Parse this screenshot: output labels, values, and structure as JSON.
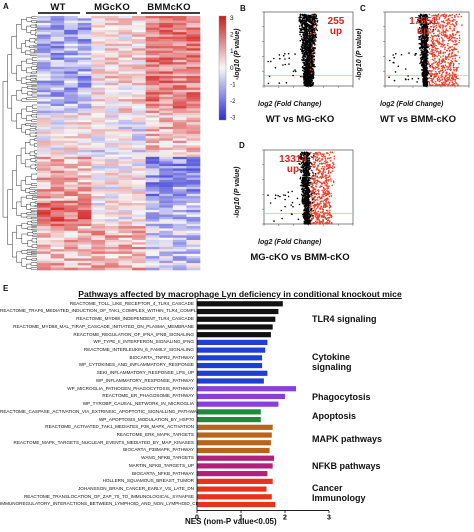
{
  "panels": {
    "A": "A",
    "B": "B",
    "C": "C",
    "D": "D",
    "E": "E"
  },
  "heatmap": {
    "groups": [
      "WT",
      "MGcKO",
      "BMMcKO"
    ],
    "scale_ticks": [
      "3",
      "2",
      "1",
      "0",
      "-1",
      "-2",
      "-3"
    ],
    "colors": {
      "high": "#d7191c",
      "mid": "#f7f7f7",
      "low": "#2c2cd6"
    }
  },
  "volcano": {
    "ylabel": "-log10 (P value)",
    "xlabel": "log2 (Fold Change)",
    "plots": [
      {
        "panel": "B",
        "up_count": "255",
        "up_word": "up",
        "title": "WT vs MG-cKO"
      },
      {
        "panel": "C",
        "up_count": "17651",
        "up_word": "up",
        "title": "WT vs BMM-cKO"
      },
      {
        "panel": "D",
        "up_count": "13314",
        "up_word": "up",
        "title": "MG-cKO vs BMM-cKO"
      }
    ]
  },
  "chart_data": {
    "type": "bar",
    "title": "Pathways affected by macrophage Lyn deficiency in conditional knockout mice",
    "xlabel": "NES (nom-P value<0.05)",
    "xticks": [
      "0",
      "1",
      "2",
      "3"
    ],
    "xlim": [
      0,
      3
    ],
    "categories": [
      "REACTOME_TOLL_LIKE_RECEPTOR_4_TLR4_CASCADE",
      "REACTOME_TRAF6_MEDIATED_INDUCTION_OF_TAK1_COMPLEX_WITHIN_TLR4_COMPLEX",
      "REACTOME_MYD88_INDEPENDENT_TLR4_CASCADE",
      "REACTOME_MYD88_MAL_TIRAP_CASCADE_INITIATED_ON_PLASMA_MEMBRANE",
      "REACTOME_REGULATION_OF_IFNA_IFNB_SIGNALING",
      "WP_TYPE_II_INTERFERON_SIGNALING_IFNG",
      "REACTOME_INTERLEUKIN_6_FAMILY_SIGNALING",
      "BIOCARTA_TNFR2_PATHWAY",
      "WP_CYTOKINES_AND_INFLAMMATORY_RESPONSE",
      "SEKI_INFLAMMATORY_RESPONSE_LPS_UP",
      "WP_INFLAMMATORY_RESPONSE_PATHWAY",
      "WP_MICROGLIA_PATHOGEN_PHAGOCYTOSIS_PATHWAY",
      "REACTOME_ER_PHAGOSOME_PATHWAY",
      "WP_TYROBP_CAUSAL_NETWORK_IN_MICROGLIA",
      "REACTOME_CASPASE_ACTIVATION_VIA_EXTRINSIC_APOPTOTIC_SIGNALLING_PATHWAY",
      "WP_APOPTOSIS_MODULATION_BY_HSP70",
      "REACTOME_ACTIVATED_TAK1_MEDIATES_P38_MAPK_ACTIVATION",
      "REACTOME_ERK_MAPK_TARGETS",
      "REACTOME_MAPK_TARGETS_NUCLEAR_EVENTS_MEDIATED_BY_MAP_KINASES",
      "BIOCARTA_P38MAPK_PATHWAY",
      "WANG_NFKB_TARGETS",
      "MARTIN_NFKB_TARGETS_UP",
      "BIOCARTA_NFKB_PATHWAY",
      "HOLLERN_SQUAMOUS_BREAST_TUMOR",
      "JOHANSSON_BRAIN_CANCER_EARLY_VS_LATE_DN",
      "REACTOME_TRANSLOCATION_OF_ZAP_70_TO_IMMUNOLOGICAL_SYNAPSE",
      "IMMUNOREGULATORY_INTERACTIONS_BETWEEN_LYMPHOID_AND_NON_LYMPHOID_CELLS"
    ],
    "values": [
      1.95,
      1.85,
      1.78,
      1.72,
      1.68,
      1.6,
      1.55,
      1.48,
      1.48,
      1.6,
      1.52,
      2.25,
      2.0,
      1.85,
      1.45,
      1.45,
      1.72,
      1.7,
      1.68,
      1.65,
      1.75,
      1.72,
      1.6,
      1.72,
      1.58,
      1.7,
      1.78
    ],
    "groups": [
      {
        "name": "TLR4 signaling",
        "start": 0,
        "count": 5,
        "color": "#111111"
      },
      {
        "name": "Cytokine signaling",
        "start": 5,
        "count": 6,
        "color": "#1f3ed6"
      },
      {
        "name": "Phagocytosis",
        "start": 11,
        "count": 3,
        "color": "#8a3fd8"
      },
      {
        "name": "Apoptosis",
        "start": 14,
        "count": 2,
        "color": "#1f8a3a"
      },
      {
        "name": "MAPK pathways",
        "start": 16,
        "count": 4,
        "color": "#b8641a"
      },
      {
        "name": "NFKB pathways",
        "start": 20,
        "count": 3,
        "color": "#b51f7a"
      },
      {
        "name": "Cancer Immunology",
        "start": 23,
        "count": 4,
        "color": "#e8321e"
      }
    ]
  }
}
